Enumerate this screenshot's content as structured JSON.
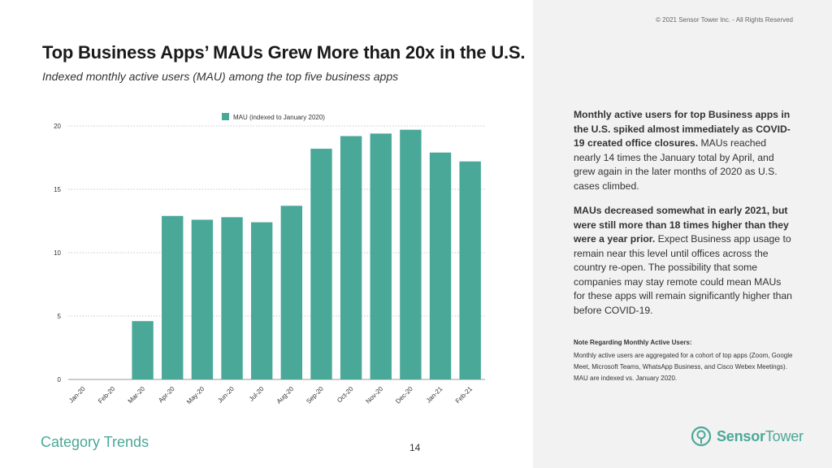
{
  "copyright": "© 2021 Sensor Tower Inc. - All Rights Reserved",
  "title": "Top Business Apps’ MAUs Grew More than 20x in the U.S.",
  "subtitle": "Indexed monthly active users (MAU) among the top five business apps",
  "colors": {
    "bar": "#4aa899",
    "accent": "#4aa899",
    "panel": "#f2f2f2"
  },
  "chart_data": {
    "type": "bar",
    "categories": [
      "Jan-20",
      "Feb-20",
      "Mar-20",
      "Apr-20",
      "May-20",
      "Jun-20",
      "Jul-20",
      "Aug-20",
      "Sep-20",
      "Oct-20",
      "Nov-20",
      "Dec-20",
      "Jan-21",
      "Feb-21"
    ],
    "series": [
      {
        "name": "MAU (indexed to January 2020)",
        "values": [
          0,
          0,
          4.6,
          12.9,
          12.6,
          12.8,
          12.4,
          13.7,
          18.2,
          19.2,
          19.4,
          19.7,
          17.9,
          17.2
        ]
      }
    ],
    "yticks": [
      "0",
      "5",
      "10",
      "15",
      "20"
    ],
    "ylim": [
      0,
      20
    ],
    "grid": true,
    "legend_position": "top-center"
  },
  "panel": {
    "para1_bold": "Monthly active users for top Business apps in the U.S. spiked almost immediately as COVID-19 created office closures.",
    "para1_rest": " MAUs reached nearly 14 times the January total by April, and grew again in the later months of 2020 as U.S. cases climbed.",
    "para2_bold": "MAUs decreased somewhat in early 2021, but were still more than 18 times higher than they were a year prior.",
    "para2_rest": " Expect Business app usage to remain near this level until offices across the country re-open. The possibility that some companies may stay remote could mean MAUs for these apps will remain significantly higher than before COVID-19.",
    "note_title": "Note Regarding Monthly Active Users:",
    "note_body": "Monthly active users are aggregated for a cohort of top apps (Zoom, Google Meet, Microsoft Teams, WhatsApp Business, and Cisco Webex Meetings). MAU are indexed vs. January 2020."
  },
  "footer": {
    "category": "Category Trends",
    "page_number": "14",
    "logo_word1": "Sensor",
    "logo_word2": "Tower"
  }
}
